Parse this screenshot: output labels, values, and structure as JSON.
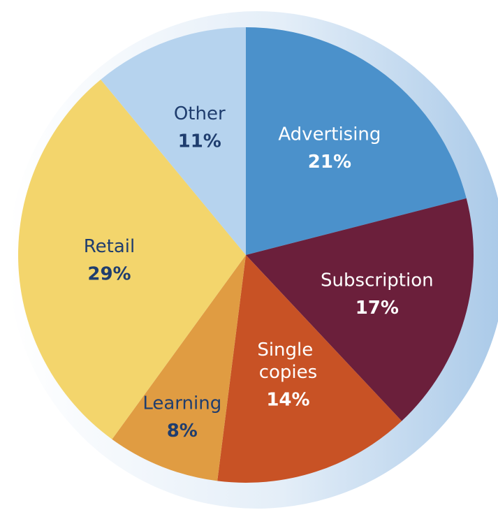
{
  "chart_data": {
    "type": "pie",
    "categories": [
      "Advertising",
      "Subscription",
      "Single copies",
      "Learning",
      "Retail",
      "Other"
    ],
    "values": [
      21,
      17,
      14,
      8,
      29,
      11
    ],
    "value_labels": [
      "21%",
      "17%",
      "14%",
      "8%",
      "29%",
      "11%"
    ],
    "colors": [
      "#4b91cb",
      "#6b1f3b",
      "#c85225",
      "#e09c42",
      "#f3d56c",
      "#b6d3ee"
    ],
    "label_colors": [
      "#ffffff",
      "#ffffff",
      "#ffffff",
      "#1f3d6e",
      "#1f3d6e",
      "#1f3d6e"
    ],
    "start_angle": 0,
    "direction": "clockwise"
  }
}
